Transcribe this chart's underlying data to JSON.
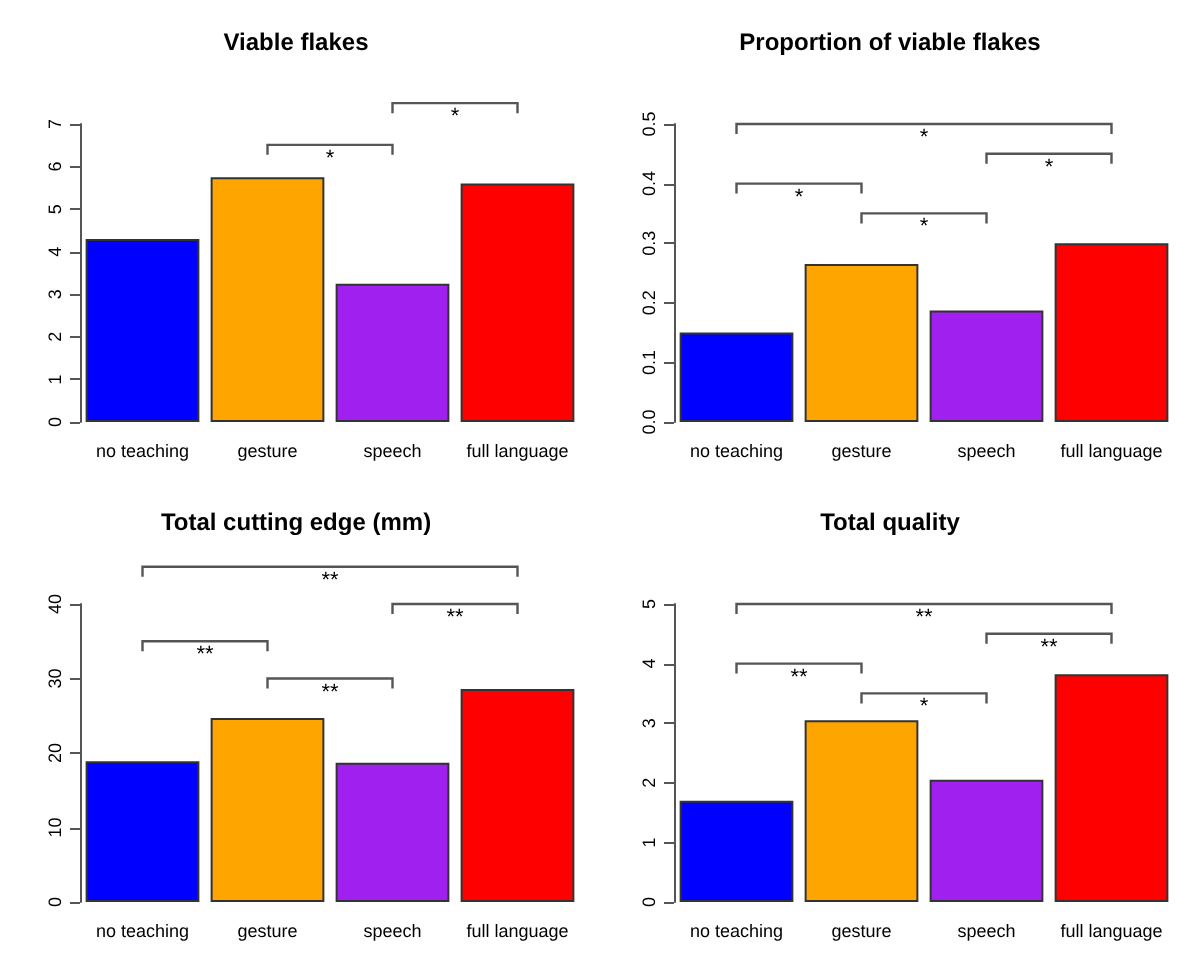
{
  "chart_data": [
    {
      "type": "bar",
      "title": "Viable flakes",
      "categories": [
        "no teaching",
        "gesture",
        "speech",
        "full language"
      ],
      "values": [
        4.3,
        5.75,
        3.25,
        5.6
      ],
      "colors": [
        "#0000ff",
        "#ffa500",
        "#a020f0",
        "#ff0000"
      ],
      "ylim": [
        0,
        7
      ],
      "yticks": [
        0,
        1,
        2,
        3,
        4,
        5,
        6,
        7
      ],
      "annotations": [
        "*",
        "*"
      ]
    },
    {
      "type": "bar",
      "title": "Proportion of viable flakes",
      "categories": [
        "no teaching",
        "gesture",
        "speech",
        "full language"
      ],
      "values": [
        0.15,
        0.265,
        0.187,
        0.3
      ],
      "colors": [
        "#0000ff",
        "#ffa500",
        "#a020f0",
        "#ff0000"
      ],
      "ylim": [
        0,
        0.5
      ],
      "yticks": [
        {
          "value": 0,
          "label": "0.0"
        },
        0.1,
        0.2,
        0.3,
        0.4,
        0.5
      ],
      "annotations": [
        "*",
        "*",
        "*",
        "*"
      ]
    },
    {
      "type": "bar",
      "title": "Total cutting edge (mm)",
      "categories": [
        "no teaching",
        "gesture",
        "speech",
        "full language"
      ],
      "values": [
        18.9,
        24.7,
        18.7,
        28.6
      ],
      "colors": [
        "#0000ff",
        "#ffa500",
        "#a020f0",
        "#ff0000"
      ],
      "ylim": [
        0,
        40
      ],
      "yticks": [
        0,
        10,
        20,
        30,
        40
      ],
      "annotations": [
        "**",
        "**",
        "**",
        "**"
      ]
    },
    {
      "type": "bar",
      "title": "Total quality",
      "categories": [
        "no teaching",
        "gesture",
        "speech",
        "full language"
      ],
      "values": [
        1.7,
        3.05,
        2.05,
        3.82
      ],
      "colors": [
        "#0000ff",
        "#ffa500",
        "#a020f0",
        "#ff0000"
      ],
      "ylim": [
        0,
        5
      ],
      "yticks": [
        0,
        1,
        2,
        3,
        4,
        5
      ],
      "annotations": [
        "**",
        "**",
        "**",
        "*"
      ]
    }
  ]
}
